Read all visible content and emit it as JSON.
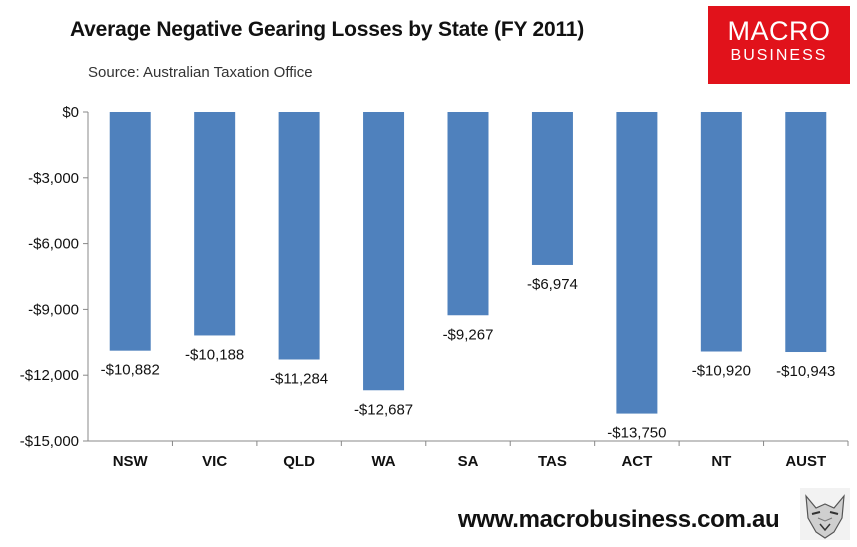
{
  "header": {
    "title": "Average Negative Gearing Losses by State (FY 2011)",
    "source": "Source:  Australian Taxation Office"
  },
  "logo": {
    "line1": "MACRO",
    "line2": "BUSINESS",
    "color": "#e1121b"
  },
  "footer": {
    "url": "www.macrobusiness.com.au"
  },
  "chart_data": {
    "type": "bar",
    "categories": [
      "NSW",
      "VIC",
      "QLD",
      "WA",
      "SA",
      "TAS",
      "ACT",
      "NT",
      "AUST"
    ],
    "values": [
      -10882,
      -10188,
      -11284,
      -12687,
      -9267,
      -6974,
      -13750,
      -10920,
      -10943
    ],
    "data_labels": [
      "-$10,882",
      "-$10,188",
      "-$11,284",
      "-$12,687",
      "-$9,267",
      "-$6,974",
      "-$13,750",
      "-$10,920",
      "-$10,943"
    ],
    "title": "Average Negative Gearing Losses by State (FY 2011)",
    "xlabel": "",
    "ylabel": "",
    "ylim": [
      -15000,
      0
    ],
    "yticks": [
      0,
      -3000,
      -6000,
      -9000,
      -12000,
      -15000
    ],
    "ytick_labels": [
      "$0",
      "-$3,000",
      "-$6,000",
      "-$9,000",
      "-$12,000",
      "-$15,000"
    ],
    "grid": false,
    "bar_color": "#4f81bd"
  }
}
